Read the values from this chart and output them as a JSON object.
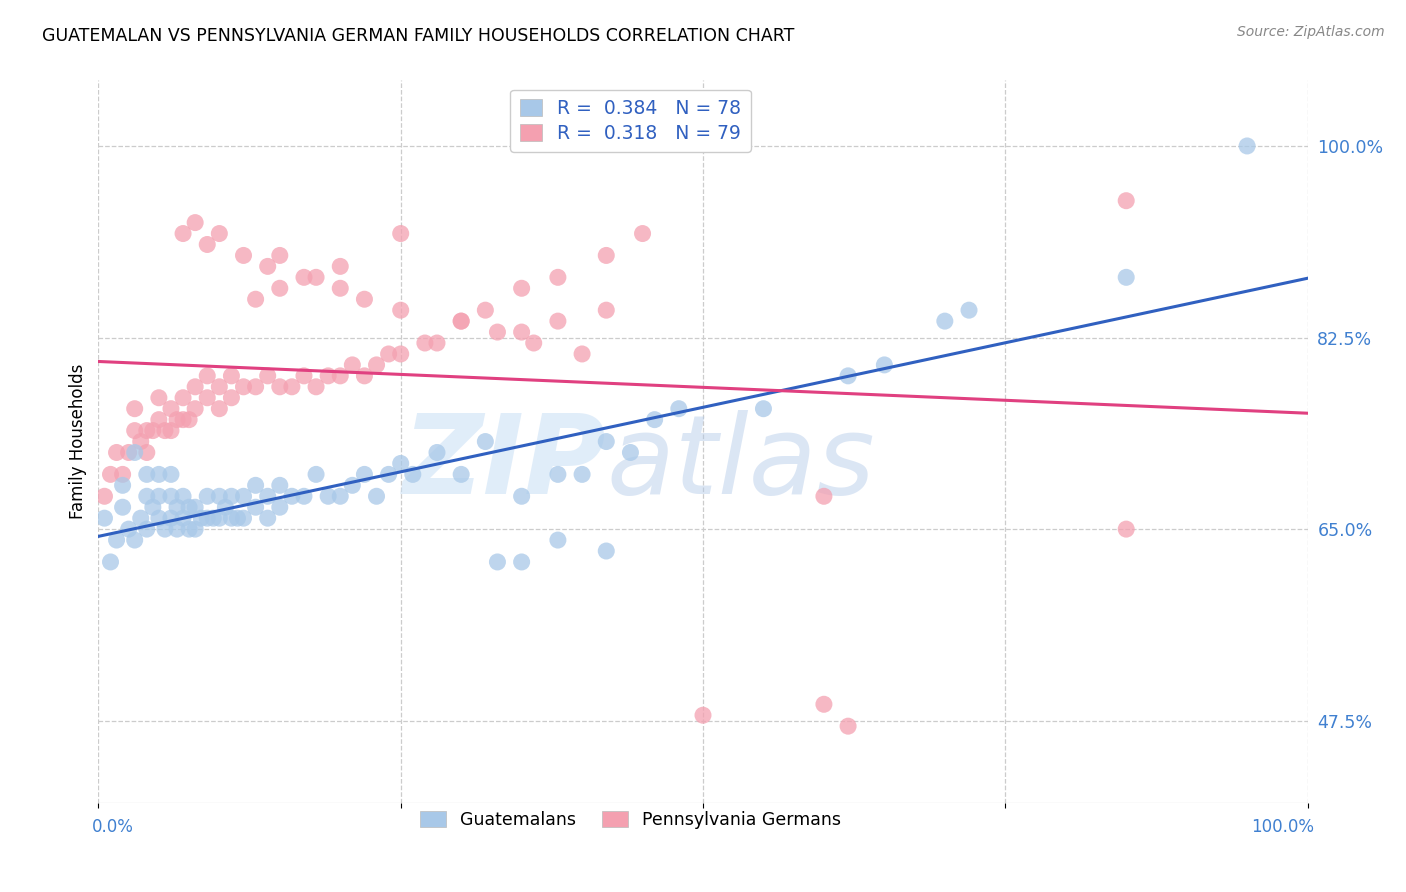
{
  "title": "GUATEMALAN VS PENNSYLVANIA GERMAN FAMILY HOUSEHOLDS CORRELATION CHART",
  "source": "Source: ZipAtlas.com",
  "ylabel": "Family Households",
  "legend_blue_R": "0.384",
  "legend_blue_N": "78",
  "legend_pink_R": "0.318",
  "legend_pink_N": "79",
  "legend_label_blue": "Guatemalans",
  "legend_label_pink": "Pennsylvania Germans",
  "blue_color": "#a8c8e8",
  "pink_color": "#f4a0b0",
  "blue_line_color": "#3060c0",
  "pink_line_color": "#e04080",
  "legend_text_color": "#3060c0",
  "tick_color": "#4080d0",
  "watermark_zip": "ZIP",
  "watermark_atlas": "atlas",
  "blue_x": [
    0.005,
    0.01,
    0.015,
    0.02,
    0.02,
    0.025,
    0.03,
    0.03,
    0.035,
    0.04,
    0.04,
    0.04,
    0.045,
    0.05,
    0.05,
    0.05,
    0.055,
    0.06,
    0.06,
    0.06,
    0.065,
    0.065,
    0.07,
    0.07,
    0.075,
    0.075,
    0.08,
    0.08,
    0.085,
    0.09,
    0.09,
    0.095,
    0.1,
    0.1,
    0.105,
    0.11,
    0.11,
    0.115,
    0.12,
    0.12,
    0.13,
    0.13,
    0.14,
    0.14,
    0.15,
    0.15,
    0.16,
    0.17,
    0.18,
    0.19,
    0.2,
    0.21,
    0.22,
    0.23,
    0.24,
    0.25,
    0.26,
    0.28,
    0.3,
    0.32,
    0.35,
    0.38,
    0.4,
    0.42,
    0.44,
    0.46,
    0.48,
    0.38,
    0.42,
    0.55,
    0.62,
    0.65,
    0.7,
    0.72,
    0.85,
    0.95,
    0.33,
    0.35
  ],
  "blue_y": [
    0.66,
    0.62,
    0.64,
    0.67,
    0.69,
    0.65,
    0.64,
    0.72,
    0.66,
    0.65,
    0.68,
    0.7,
    0.67,
    0.66,
    0.68,
    0.7,
    0.65,
    0.66,
    0.68,
    0.7,
    0.65,
    0.67,
    0.66,
    0.68,
    0.65,
    0.67,
    0.65,
    0.67,
    0.66,
    0.66,
    0.68,
    0.66,
    0.66,
    0.68,
    0.67,
    0.66,
    0.68,
    0.66,
    0.66,
    0.68,
    0.67,
    0.69,
    0.66,
    0.68,
    0.67,
    0.69,
    0.68,
    0.68,
    0.7,
    0.68,
    0.68,
    0.69,
    0.7,
    0.68,
    0.7,
    0.71,
    0.7,
    0.72,
    0.7,
    0.73,
    0.68,
    0.7,
    0.7,
    0.73,
    0.72,
    0.75,
    0.76,
    0.64,
    0.63,
    0.76,
    0.79,
    0.8,
    0.84,
    0.85,
    0.88,
    1.0,
    0.62,
    0.62
  ],
  "pink_x": [
    0.005,
    0.01,
    0.015,
    0.02,
    0.025,
    0.03,
    0.03,
    0.035,
    0.04,
    0.04,
    0.045,
    0.05,
    0.05,
    0.055,
    0.06,
    0.06,
    0.065,
    0.07,
    0.07,
    0.075,
    0.08,
    0.08,
    0.09,
    0.09,
    0.1,
    0.1,
    0.11,
    0.11,
    0.12,
    0.13,
    0.14,
    0.15,
    0.16,
    0.17,
    0.18,
    0.19,
    0.2,
    0.21,
    0.22,
    0.23,
    0.24,
    0.25,
    0.27,
    0.28,
    0.3,
    0.32,
    0.35,
    0.38,
    0.42,
    0.45,
    0.13,
    0.15,
    0.17,
    0.2,
    0.25,
    0.6,
    0.85,
    0.35,
    0.38,
    0.42,
    0.07,
    0.08,
    0.09,
    0.1,
    0.12,
    0.14,
    0.15,
    0.18,
    0.2,
    0.22,
    0.25,
    0.3,
    0.33,
    0.36,
    0.4,
    0.5,
    0.6,
    0.62,
    0.85
  ],
  "pink_y": [
    0.68,
    0.7,
    0.72,
    0.7,
    0.72,
    0.74,
    0.76,
    0.73,
    0.72,
    0.74,
    0.74,
    0.75,
    0.77,
    0.74,
    0.74,
    0.76,
    0.75,
    0.75,
    0.77,
    0.75,
    0.76,
    0.78,
    0.77,
    0.79,
    0.76,
    0.78,
    0.77,
    0.79,
    0.78,
    0.78,
    0.79,
    0.78,
    0.78,
    0.79,
    0.78,
    0.79,
    0.79,
    0.8,
    0.79,
    0.8,
    0.81,
    0.81,
    0.82,
    0.82,
    0.84,
    0.85,
    0.87,
    0.88,
    0.9,
    0.92,
    0.86,
    0.87,
    0.88,
    0.89,
    0.92,
    0.68,
    0.65,
    0.83,
    0.84,
    0.85,
    0.92,
    0.93,
    0.91,
    0.92,
    0.9,
    0.89,
    0.9,
    0.88,
    0.87,
    0.86,
    0.85,
    0.84,
    0.83,
    0.82,
    0.81,
    0.48,
    0.49,
    0.47,
    0.95
  ]
}
